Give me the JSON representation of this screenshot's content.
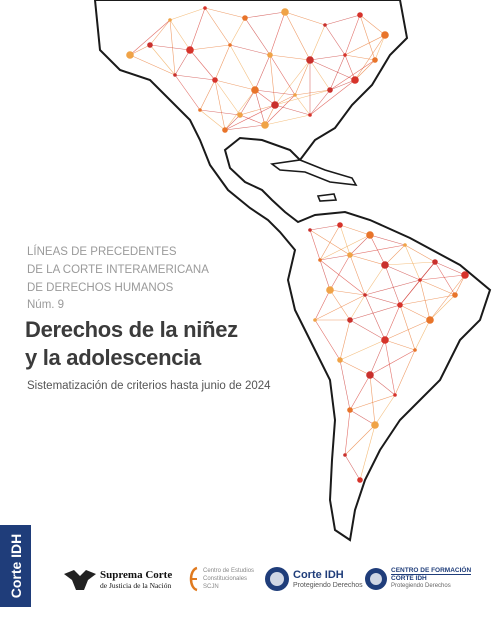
{
  "header": {
    "series_lines": [
      "LÍNEAS DE PRECEDENTES",
      "DE LA CORTE INTERAMERICANA",
      "DE DERECHOS HUMANOS"
    ],
    "number": "Núm. 9"
  },
  "title_lines": [
    "Derechos de la niñez",
    "y la adolescencia"
  ],
  "subtitle": "Sistematización de criterios hasta junio de 2024",
  "side_tab": "Corte IDH",
  "logos": [
    {
      "lines": [
        "Suprema Corte",
        "de Justicia de la Nación"
      ]
    },
    {
      "lines": [
        "Centro de Estudios",
        "Constitucionales",
        "SCJN"
      ]
    },
    {
      "lines": [
        "Corte IDH",
        "Protegiendo Derechos"
      ]
    },
    {
      "lines": [
        "CENTRO DE FORMACIÓN",
        "CORTE IDH",
        "Protegiendo Derechos"
      ]
    }
  ]
}
